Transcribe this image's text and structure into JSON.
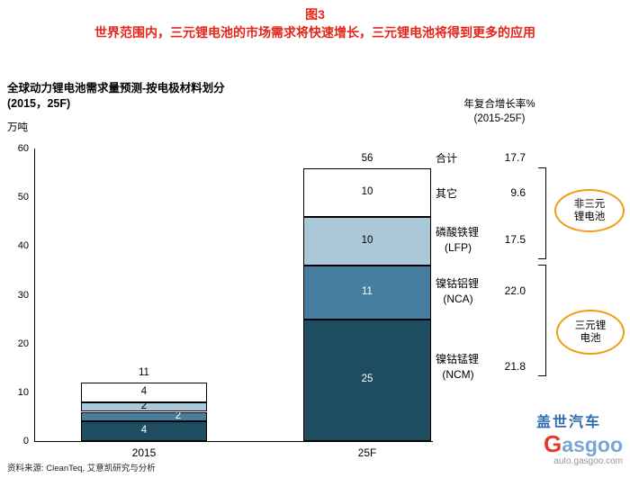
{
  "header": {
    "figure_label": "图3",
    "title": "世界范围内，三元锂电池的市场需求将快速增长，三元锂电池将得到更多的应用"
  },
  "chart": {
    "title_line1": "全球动力锂电池需求量预测-按电极材料划分",
    "title_line2": "(2015，25F)",
    "unit": "万吨",
    "cagr_line1": "年复合增长率%",
    "cagr_line2": "(2015-25F)"
  },
  "chart_data": {
    "type": "bar",
    "stacked": true,
    "title": "全球动力锂电池需求量预测-按电极材料划分 (2015，25F)",
    "ylabel": "万吨",
    "ylim": [
      0,
      60
    ],
    "yticks": [
      0,
      10,
      20,
      30,
      40,
      50,
      60
    ],
    "categories": [
      "2015",
      "25F"
    ],
    "series": [
      {
        "name": "镍钴锰锂 (NCM)",
        "values": [
          4,
          25
        ],
        "color": "#1e4d61",
        "label_color": "#ffffff"
      },
      {
        "name": "镍钴铝锂 (NCA)",
        "values": [
          2,
          11
        ],
        "color": "#467ea1",
        "label_color": "#ffffff",
        "label_dx": [
          38,
          0
        ]
      },
      {
        "name": "磷酸铁锂 (LFP)",
        "values": [
          2,
          10
        ],
        "color": "#abc8d8",
        "label_color": "#000000"
      },
      {
        "name": "其它",
        "values": [
          4,
          10
        ],
        "color": "#ffffff",
        "label_color": "#000000"
      }
    ],
    "totals": [
      11,
      56
    ],
    "cagr_percent": {
      "合计": 17.7,
      "其它": 9.6,
      "磷酸铁锂(LFP)": 17.5,
      "镍钴铝锂(NCA)": 22.0,
      "镍钴锰锂(NCM)": 21.8
    }
  },
  "right_panel": {
    "rows": [
      {
        "label": "合计",
        "label2": "",
        "cagr": "17.7"
      },
      {
        "label": "其它",
        "label2": "",
        "cagr": "9.6"
      },
      {
        "label": "磷酸铁锂",
        "label2": "(LFP)",
        "cagr": "17.5"
      },
      {
        "label": "镍钴铝锂",
        "label2": "(NCA)",
        "cagr": "22.0"
      },
      {
        "label": "镍钴锰锂",
        "label2": "(NCM)",
        "cagr": "21.8"
      }
    ],
    "group1": {
      "line1": "非三元",
      "line2": "锂电池"
    },
    "group2": {
      "line1": "三元锂",
      "line2": "电池"
    }
  },
  "footer": {
    "source": "资料来源: CleanTeq, 艾意凯研究与分析"
  },
  "logo": {
    "cn": "盖世汽车",
    "en_g": "G",
    "en_rest": "asgoo",
    "url": "auto.gasgoo.com"
  },
  "colors": {
    "title_red": "#e42518",
    "ncm_dark_blue": "#1e4d61",
    "nca_medium_blue": "#467ea1",
    "lfp_light_blue": "#abc8d8",
    "other_white": "#ffffff",
    "oval_orange": "#f09d13",
    "logo_blue": "#2f6cb3",
    "logo_red": "#e23b2d"
  }
}
